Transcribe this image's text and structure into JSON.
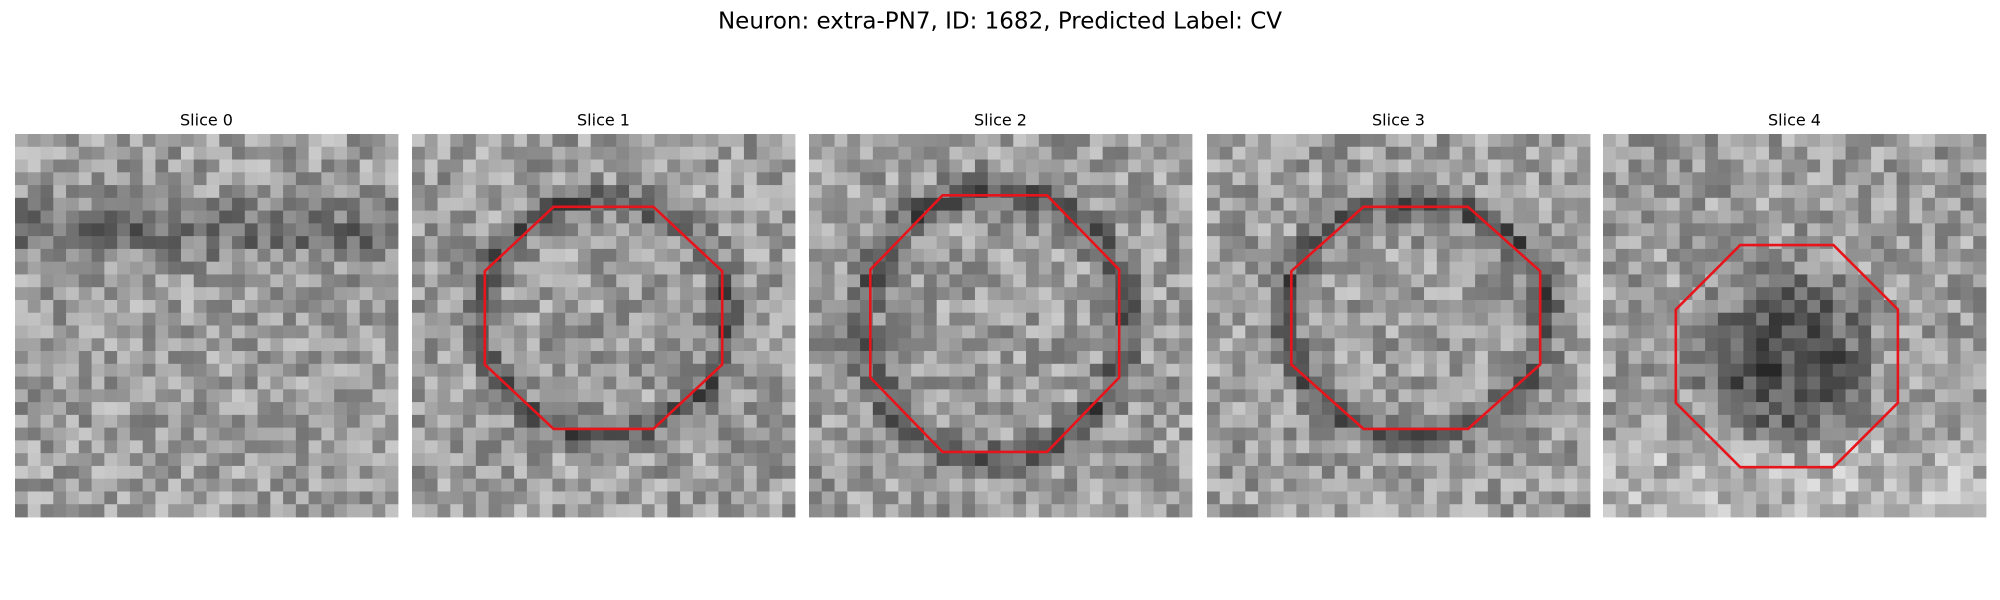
{
  "title": "Neuron: extra-PN7, ID: 1682, Predicted Label: CV",
  "panels": [
    {
      "title": "Slice 0"
    },
    {
      "title": "Slice 1"
    },
    {
      "title": "Slice 2"
    },
    {
      "title": "Slice 3"
    },
    {
      "title": "Slice 4"
    }
  ]
}
